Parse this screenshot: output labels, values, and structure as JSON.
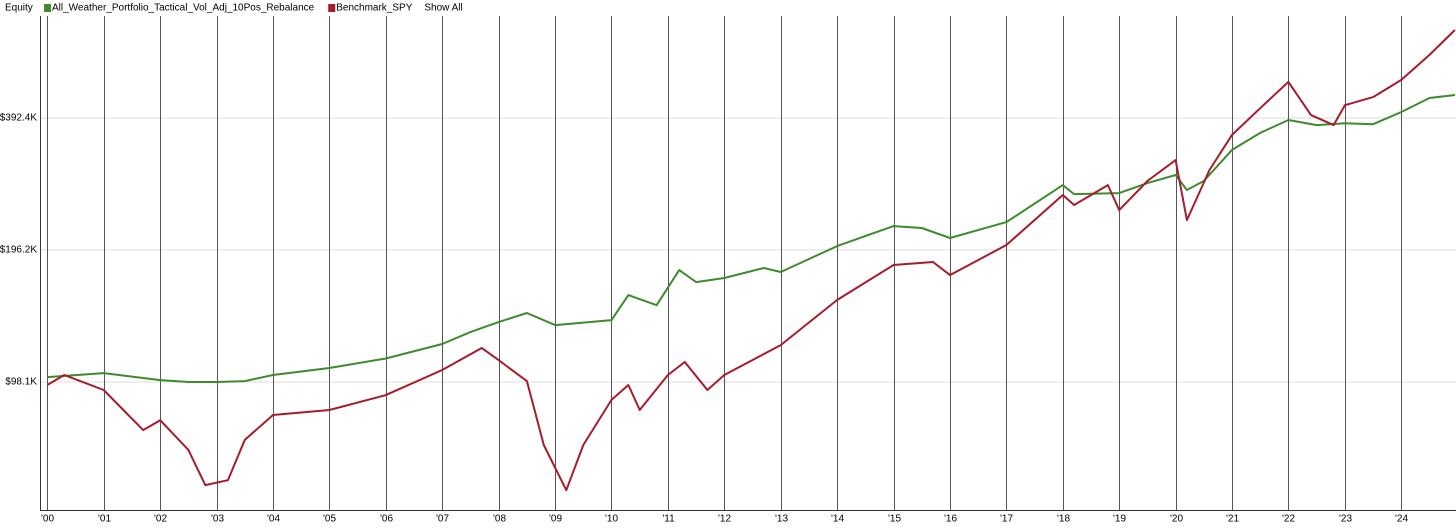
{
  "chart_data": {
    "type": "line",
    "title": "Equity",
    "legend_action": "Show All",
    "log_scale": true,
    "grid": true,
    "xlim": [
      1999.87,
      2024.97
    ],
    "ylim": [
      50100,
      670600
    ],
    "yticks": [
      {
        "value": 98100,
        "label": "$98.1K"
      },
      {
        "value": 196200,
        "label": "$196.2K"
      },
      {
        "value": 392400,
        "label": "$392.4K"
      }
    ],
    "xticks": [
      {
        "value": 2000,
        "label": "'00"
      },
      {
        "value": 2001,
        "label": "'01"
      },
      {
        "value": 2002,
        "label": "'02"
      },
      {
        "value": 2003,
        "label": "'03"
      },
      {
        "value": 2004,
        "label": "'04"
      },
      {
        "value": 2005,
        "label": "'05"
      },
      {
        "value": 2006,
        "label": "'06"
      },
      {
        "value": 2007,
        "label": "'07"
      },
      {
        "value": 2008,
        "label": "'08"
      },
      {
        "value": 2009,
        "label": "'09"
      },
      {
        "value": 2010,
        "label": "'10"
      },
      {
        "value": 2011,
        "label": "'11"
      },
      {
        "value": 2012,
        "label": "'12"
      },
      {
        "value": 2013,
        "label": "'13"
      },
      {
        "value": 2014,
        "label": "'14"
      },
      {
        "value": 2015,
        "label": "'15"
      },
      {
        "value": 2016,
        "label": "'16"
      },
      {
        "value": 2017,
        "label": "'17"
      },
      {
        "value": 2018,
        "label": "'18"
      },
      {
        "value": 2019,
        "label": "'19"
      },
      {
        "value": 2020,
        "label": "'20"
      },
      {
        "value": 2021,
        "label": "'21"
      },
      {
        "value": 2022,
        "label": "'22"
      },
      {
        "value": 2023,
        "label": "'23"
      },
      {
        "value": 2024,
        "label": "'24"
      }
    ],
    "series": [
      {
        "name": "All_Weather_Portfolio_Tactical_Vol_Adj_10Pos_Rebalance",
        "color": "#3f8a2f",
        "x": [
          2000.0,
          2001.0,
          2002.0,
          2002.5,
          2003.0,
          2003.5,
          2004.0,
          2005.0,
          2006.0,
          2007.0,
          2007.5,
          2008.0,
          2008.5,
          2009.0,
          2010.0,
          2010.3,
          2010.8,
          2011.2,
          2011.5,
          2012.0,
          2012.7,
          2013.0,
          2014.0,
          2015.0,
          2015.5,
          2016.0,
          2017.0,
          2018.0,
          2018.2,
          2019.0,
          2019.5,
          2020.0,
          2020.2,
          2020.5,
          2021.0,
          2021.5,
          2022.0,
          2022.5,
          2023.0,
          2023.5,
          2024.0,
          2024.5,
          2024.95
        ],
        "values": [
          100700,
          102800,
          99100,
          98100,
          98100,
          98600,
          101800,
          105600,
          111000,
          119800,
          127500,
          134400,
          141000,
          132300,
          135800,
          154900,
          146900,
          176600,
          165800,
          169400,
          178500,
          174800,
          200300,
          222500,
          220300,
          209000,
          227200,
          275900,
          263200,
          264600,
          278900,
          291000,
          268900,
          281900,
          331900,
          363000,
          388500,
          378200,
          381700,
          379900,
          405100,
          435900,
          442800
        ]
      },
      {
        "name": "Benchmark_SPY",
        "color": "#a51d2d",
        "x": [
          2000.0,
          2000.3,
          2001.0,
          2001.7,
          2002.0,
          2002.5,
          2002.8,
          2003.2,
          2003.5,
          2004.0,
          2005.0,
          2006.0,
          2007.0,
          2007.7,
          2008.0,
          2008.5,
          2008.8,
          2009.2,
          2009.5,
          2010.0,
          2010.3,
          2010.5,
          2011.0,
          2011.3,
          2011.7,
          2012.0,
          2013.0,
          2014.0,
          2015.0,
          2015.7,
          2016.0,
          2017.0,
          2018.0,
          2018.2,
          2018.8,
          2019.0,
          2019.5,
          2020.0,
          2020.2,
          2020.6,
          2021.0,
          2021.5,
          2022.0,
          2022.4,
          2022.8,
          2023.0,
          2023.5,
          2024.0,
          2024.5,
          2024.95
        ],
        "values": [
          96600,
          101800,
          94100,
          76200,
          80300,
          68700,
          57100,
          58600,
          72400,
          82500,
          84700,
          91600,
          104500,
          117300,
          110100,
          98600,
          70500,
          55600,
          70500,
          89300,
          96600,
          84700,
          101800,
          109000,
          94100,
          101800,
          119100,
          150900,
          181400,
          184300,
          172000,
          201500,
          262000,
          248500,
          275900,
          242000,
          281900,
          314700,
          229600,
          298700,
          359200,
          413300,
          474400,
          398600,
          378200,
          419900,
          438000,
          479400,
          546700,
          623000
        ]
      }
    ]
  }
}
